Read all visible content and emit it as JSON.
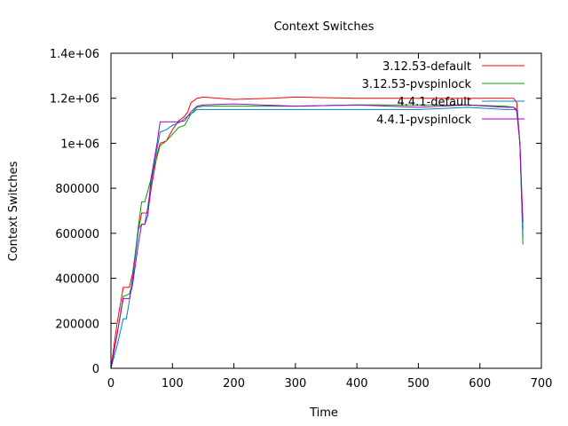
{
  "chart_data": {
    "type": "line",
    "title": "Context Switches",
    "xlabel": "Time",
    "ylabel": "Context Switches",
    "xlim": [
      0,
      700
    ],
    "ylim": [
      0,
      1400000
    ],
    "x_ticks": [
      0,
      100,
      200,
      300,
      400,
      500,
      600,
      700
    ],
    "x_tick_labels": [
      "0",
      "100",
      "200",
      "300",
      "400",
      "500",
      "600",
      "700"
    ],
    "y_ticks": [
      0,
      200000,
      400000,
      600000,
      800000,
      1000000,
      1200000,
      1400000
    ],
    "y_tick_labels": [
      "0",
      "200000",
      "400000",
      "600000",
      "800000",
      "1e+06",
      "1.2e+06",
      "1.4e+06"
    ],
    "grid": false,
    "legend_position": "top-right",
    "series": [
      {
        "name": "3.12.53-default",
        "color": "#ff0000",
        "x": [
          0,
          10,
          20,
          30,
          35,
          45,
          50,
          60,
          65,
          75,
          80,
          90,
          100,
          110,
          115,
          120,
          125,
          130,
          140,
          150,
          200,
          260,
          300,
          400,
          500,
          580,
          640,
          655,
          660,
          665,
          670
        ],
        "y": [
          0,
          200000,
          360000,
          360000,
          420000,
          620000,
          690000,
          690000,
          790000,
          950000,
          1000000,
          1010000,
          1060000,
          1100000,
          1110000,
          1120000,
          1140000,
          1180000,
          1200000,
          1205000,
          1195000,
          1200000,
          1205000,
          1200000,
          1200000,
          1200000,
          1200000,
          1200000,
          1180000,
          1000000,
          620000
        ]
      },
      {
        "name": "3.12.53-pvspinlock",
        "color": "#00a000",
        "x": [
          0,
          10,
          20,
          30,
          35,
          40,
          45,
          50,
          55,
          60,
          70,
          80,
          90,
          100,
          110,
          120,
          130,
          140,
          150,
          200,
          300,
          400,
          500,
          580,
          640,
          655,
          660,
          665,
          670
        ],
        "y": [
          0,
          150000,
          320000,
          330000,
          380000,
          520000,
          640000,
          740000,
          740000,
          790000,
          890000,
          990000,
          1010000,
          1040000,
          1070000,
          1080000,
          1130000,
          1160000,
          1165000,
          1165000,
          1165000,
          1170000,
          1170000,
          1170000,
          1165000,
          1160000,
          1140000,
          1000000,
          550000
        ]
      },
      {
        "name": "4.4.1-default",
        "color": "#0080c0",
        "x": [
          0,
          10,
          20,
          25,
          30,
          35,
          40,
          45,
          50,
          55,
          60,
          70,
          80,
          90,
          100,
          110,
          120,
          130,
          140,
          150,
          200,
          300,
          400,
          500,
          580,
          640,
          655,
          660,
          665,
          670
        ],
        "y": [
          0,
          100000,
          220000,
          220000,
          300000,
          400000,
          500000,
          620000,
          640000,
          640000,
          720000,
          900000,
          1050000,
          1060000,
          1080000,
          1090000,
          1110000,
          1130000,
          1150000,
          1150000,
          1150000,
          1150000,
          1150000,
          1150000,
          1160000,
          1150000,
          1150000,
          1150000,
          1000000,
          580000
        ]
      },
      {
        "name": "4.4.1-pvspinlock",
        "color": "#a000c0",
        "x": [
          0,
          10,
          20,
          30,
          35,
          45,
          50,
          55,
          60,
          65,
          70,
          75,
          80,
          90,
          100,
          110,
          120,
          130,
          140,
          150,
          200,
          300,
          400,
          500,
          580,
          640,
          655,
          660,
          665,
          670
        ],
        "y": [
          0,
          150000,
          310000,
          310000,
          370000,
          560000,
          640000,
          640000,
          680000,
          840000,
          920000,
          1000000,
          1095000,
          1095000,
          1095000,
          1095000,
          1100000,
          1140000,
          1165000,
          1170000,
          1175000,
          1165000,
          1170000,
          1160000,
          1170000,
          1160000,
          1160000,
          1150000,
          1000000,
          650000
        ]
      }
    ]
  }
}
